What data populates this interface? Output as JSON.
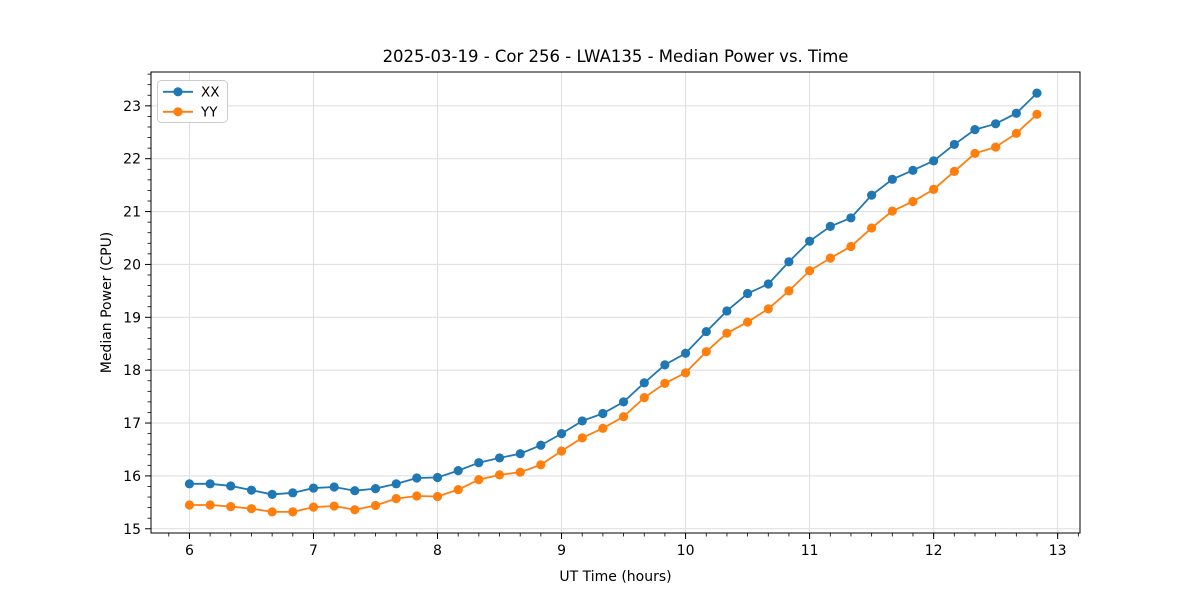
{
  "figure": {
    "background": "#ffffff",
    "spine_color": "#000000",
    "tick_color": "#000000"
  },
  "chart_data": {
    "type": "line",
    "title": "2025-03-19 - Cor 256 - LWA135 - Median Power vs. Time",
    "xlabel": "UT Time (hours)",
    "ylabel": "Median Power (CPU)",
    "xlim": [
      5.69,
      13.18
    ],
    "ylim": [
      14.92,
      23.64
    ],
    "x_major_ticks": [
      6,
      7,
      8,
      9,
      10,
      11,
      12,
      13
    ],
    "y_major_ticks": [
      15,
      16,
      17,
      18,
      19,
      20,
      21,
      22,
      23
    ],
    "x_minor_step": 0.166667,
    "y_minor_step": 0.2,
    "grid": true,
    "grid_color": "#dedede",
    "legend_position": "upper-left",
    "marker": "circle",
    "marker_radius": 4.6,
    "line_width": 1.8,
    "x": [
      6.0,
      6.167,
      6.333,
      6.5,
      6.667,
      6.833,
      7.0,
      7.167,
      7.333,
      7.5,
      7.667,
      7.833,
      8.0,
      8.167,
      8.333,
      8.5,
      8.667,
      8.833,
      9.0,
      9.167,
      9.333,
      9.5,
      9.667,
      9.833,
      10.0,
      10.167,
      10.333,
      10.5,
      10.667,
      10.833,
      11.0,
      11.167,
      11.333,
      11.5,
      11.667,
      11.833,
      12.0,
      12.167,
      12.333,
      12.5,
      12.667,
      12.833
    ],
    "series": [
      {
        "name": "XX",
        "color": "#1f77b4",
        "values": [
          15.85,
          15.85,
          15.81,
          15.73,
          15.65,
          15.68,
          15.77,
          15.79,
          15.72,
          15.76,
          15.85,
          15.96,
          15.97,
          16.1,
          16.25,
          16.34,
          16.42,
          16.58,
          16.8,
          17.04,
          17.18,
          17.4,
          17.76,
          18.1,
          18.32,
          18.73,
          19.12,
          19.45,
          19.63,
          20.05,
          20.44,
          20.72,
          20.88,
          21.31,
          21.61,
          21.78,
          21.96,
          22.27,
          22.55,
          22.66,
          22.86,
          23.24
        ]
      },
      {
        "name": "YY",
        "color": "#ff7f0e",
        "values": [
          15.45,
          15.45,
          15.42,
          15.38,
          15.32,
          15.32,
          15.41,
          15.43,
          15.36,
          15.44,
          15.57,
          15.62,
          15.61,
          15.74,
          15.93,
          16.02,
          16.07,
          16.21,
          16.47,
          16.72,
          16.9,
          17.12,
          17.48,
          17.75,
          17.95,
          18.35,
          18.7,
          18.91,
          19.16,
          19.5,
          19.88,
          20.12,
          20.34,
          20.69,
          21.01,
          21.19,
          21.42,
          21.76,
          22.1,
          22.22,
          22.48,
          22.84
        ]
      }
    ]
  }
}
